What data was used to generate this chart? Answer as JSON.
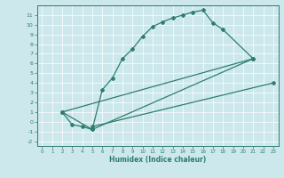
{
  "line1_x": [
    2,
    3,
    4,
    5,
    6,
    7,
    8,
    9,
    10,
    11,
    12,
    13,
    14,
    15,
    16,
    17,
    18,
    21
  ],
  "line1_y": [
    1.0,
    -0.3,
    -0.5,
    -0.8,
    3.3,
    4.5,
    6.5,
    7.5,
    8.8,
    9.8,
    10.3,
    10.7,
    11.0,
    11.3,
    11.5,
    10.2,
    9.5,
    6.5
  ],
  "line2_x": [
    2,
    5,
    21
  ],
  "line2_y": [
    1.0,
    -0.8,
    6.5
  ],
  "line3_x": [
    2,
    21
  ],
  "line3_y": [
    1.0,
    6.5
  ],
  "line4_x": [
    5,
    23
  ],
  "line4_y": [
    -0.5,
    4.0
  ],
  "color": "#2e7d6e",
  "bg_color": "#cce8ec",
  "grid_color": "#ffffff",
  "xlabel": "Humidex (Indice chaleur)",
  "xlim": [
    -0.5,
    23.5
  ],
  "ylim": [
    -2.5,
    12.0
  ],
  "xticks": [
    0,
    1,
    2,
    3,
    4,
    5,
    6,
    7,
    8,
    9,
    10,
    11,
    12,
    13,
    14,
    15,
    16,
    17,
    18,
    19,
    20,
    21,
    22,
    23
  ],
  "yticks": [
    -2,
    -1,
    0,
    1,
    2,
    3,
    4,
    5,
    6,
    7,
    8,
    9,
    10,
    11
  ],
  "marker": "D",
  "markersize": 2.0,
  "linewidth": 0.9
}
